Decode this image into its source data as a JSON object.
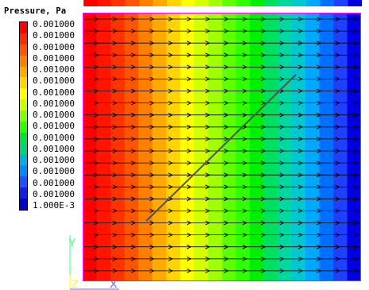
{
  "legend": {
    "title": "Pressure, Pa",
    "labels": [
      "0.001000",
      "0.001000",
      "0.001000",
      "0.001000",
      "0.001000",
      "0.001000",
      "0.001000",
      "0.001000",
      "0.001000",
      "0.001000",
      "0.001000",
      "0.001000",
      "0.001000",
      "0.001000",
      "0.001000",
      "0.001000",
      "1.000E-3"
    ],
    "colors": [
      "#ff0000",
      "#ff2a00",
      "#ff5500",
      "#ff8000",
      "#ffaa00",
      "#ffd400",
      "#ffff00",
      "#c8ff00",
      "#80ff00",
      "#2aff00",
      "#00e040",
      "#00d080",
      "#00b0d8",
      "#0088ff",
      "#2050ff",
      "#1020e8",
      "#0000d0"
    ]
  },
  "field": {
    "band_colors": [
      "#ff0000",
      "#ff1500",
      "#ff3300",
      "#ff5500",
      "#ff8000",
      "#ffaa00",
      "#ffd400",
      "#ffff00",
      "#d4ff00",
      "#a0ff00",
      "#60ff00",
      "#30ff00",
      "#00f000",
      "#00e060",
      "#00d8a0",
      "#00c8d0",
      "#00a8ff",
      "#0070ff",
      "#2040ff",
      "#0000e0"
    ],
    "arrow_color": "#000000",
    "streamline_color": "#505050",
    "border_color": "#ff00ff"
  },
  "axes": {
    "y_label": "Y",
    "z_label": "Z",
    "x_label": "X",
    "y_color": "#40ff80",
    "z_color": "#ffff00",
    "x_color": "#6060ff"
  }
}
